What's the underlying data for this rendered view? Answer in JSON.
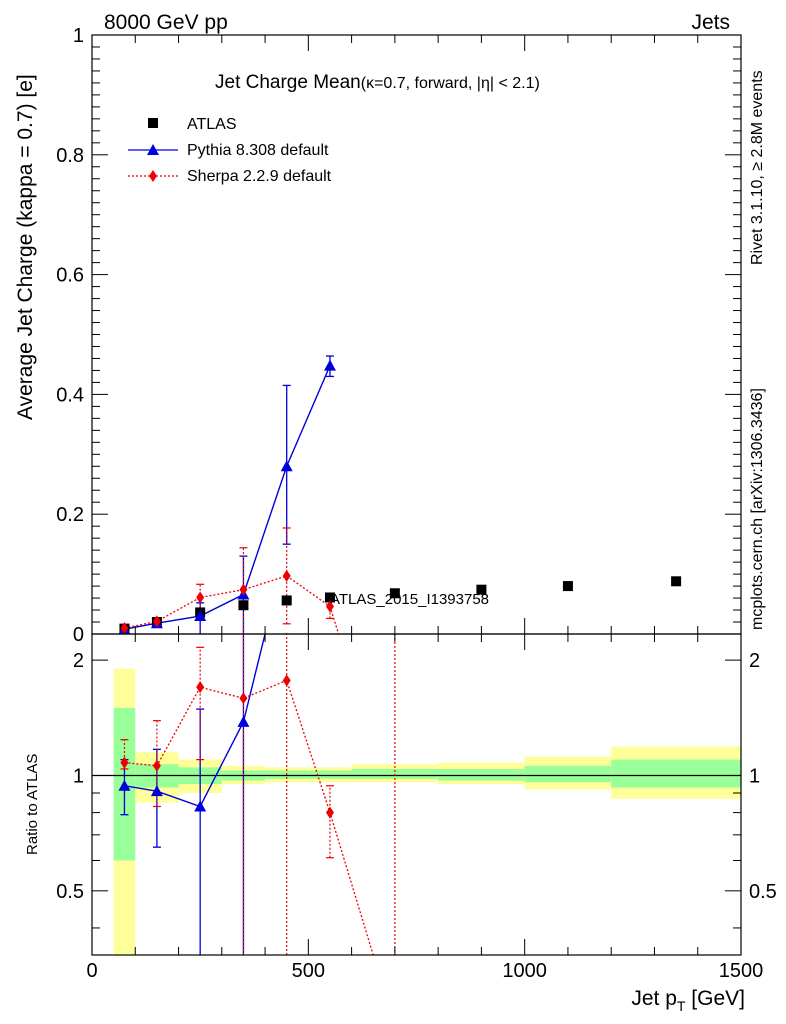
{
  "header": {
    "left": "8000 GeV pp",
    "right": "Jets"
  },
  "side_text": {
    "rivet": "Rivet 3.1.10, ≥ 2.8M events",
    "mcplots": "mcplots.cern.ch [arXiv:1306.3436]"
  },
  "watermark": "ATLAS_2015_I1393758",
  "colors": {
    "atlas": "#000000",
    "pythia": "#0000dd",
    "sherpa": "#ee0000",
    "band_inner": "#99ff99",
    "band_outer": "#ffff99"
  },
  "chart_data": [
    {
      "type": "scatter",
      "title_main": "Jet Charge Mean",
      "title_sub": "(κ=0.7, forward, |η| < 2.1)",
      "ylabel": "Average Jet Charge (kappa = 0.7) [e]",
      "xlim": [
        0,
        1500
      ],
      "ylim": [
        0,
        1
      ],
      "yticks": [
        0,
        0.2,
        0.4,
        0.6,
        0.8,
        1
      ],
      "ytick_labels": [
        "0",
        "0.2",
        "0.4",
        "0.6",
        "0.8",
        "1"
      ],
      "legend_position": "top-left",
      "series": [
        {
          "name": "ATLAS",
          "marker": "square",
          "x": [
            75,
            150,
            250,
            350,
            450,
            550,
            700,
            900,
            1100,
            1350
          ],
          "y": [
            0.009,
            0.02,
            0.036,
            0.048,
            0.056,
            0.061,
            0.068,
            0.074,
            0.08,
            0.088
          ],
          "xerr": [
            25,
            50,
            50,
            50,
            50,
            50,
            100,
            100,
            100,
            150
          ]
        },
        {
          "name": "Pythia 8.308 default",
          "marker": "triangle",
          "x": [
            75,
            150,
            250,
            350,
            450,
            550
          ],
          "y": [
            0.008,
            0.018,
            0.03,
            0.066,
            0.28,
            0.448
          ],
          "yerr_low": [
            0.003,
            0.005,
            0.03,
            0.066,
            0.13,
            0.018
          ],
          "yerr_high": [
            0.003,
            0.005,
            0.022,
            0.064,
            0.135,
            0.016
          ]
        },
        {
          "name": "Sherpa 2.2.9 default",
          "marker": "diamond",
          "x": [
            75,
            150,
            250,
            350,
            450,
            550
          ],
          "y": [
            0.01,
            0.021,
            0.061,
            0.074,
            0.097,
            0.046
          ],
          "yerr_low": [
            0.004,
            0.006,
            0.022,
            0.074,
            0.08,
            0.02
          ],
          "yerr_high": [
            0.004,
            0.006,
            0.022,
            0.07,
            0.08,
            0.02
          ],
          "tail_to": [
            700,
            -0.3
          ]
        }
      ]
    },
    {
      "type": "scatter",
      "ylabel": "Ratio to ATLAS",
      "xlabel": "Jet p_T [GeV]",
      "xlabel_main": "Jet p",
      "xlabel_sub": "T",
      "xlabel_unit": " [GeV]",
      "xlim": [
        0,
        1500
      ],
      "ylim": [
        0.34,
        2.34
      ],
      "xticks": [
        0,
        500,
        1000,
        1500
      ],
      "xtick_labels": [
        "0",
        "500",
        "1000",
        "1500"
      ],
      "yticks": [
        0.5,
        1,
        2
      ],
      "ytick_labels": [
        "0.5",
        "1",
        "2"
      ],
      "bands": [
        {
          "x0": 50,
          "x1": 100,
          "inner": [
            0.6,
            1.5
          ],
          "outer": [
            0.0,
            1.9
          ]
        },
        {
          "x0": 100,
          "x1": 200,
          "inner": [
            0.93,
            1.07
          ],
          "outer": [
            0.85,
            1.15
          ]
        },
        {
          "x0": 200,
          "x1": 300,
          "inner": [
            0.95,
            1.05
          ],
          "outer": [
            0.9,
            1.1
          ]
        },
        {
          "x0": 300,
          "x1": 400,
          "inner": [
            0.97,
            1.03
          ],
          "outer": [
            0.95,
            1.06
          ]
        },
        {
          "x0": 400,
          "x1": 500,
          "inner": [
            0.98,
            1.03
          ],
          "outer": [
            0.96,
            1.05
          ]
        },
        {
          "x0": 500,
          "x1": 600,
          "inner": [
            0.98,
            1.03
          ],
          "outer": [
            0.96,
            1.05
          ]
        },
        {
          "x0": 600,
          "x1": 800,
          "inner": [
            0.98,
            1.04
          ],
          "outer": [
            0.96,
            1.07
          ]
        },
        {
          "x0": 800,
          "x1": 1000,
          "inner": [
            0.97,
            1.04
          ],
          "outer": [
            0.95,
            1.08
          ]
        },
        {
          "x0": 1000,
          "x1": 1200,
          "inner": [
            0.96,
            1.06
          ],
          "outer": [
            0.92,
            1.12
          ]
        },
        {
          "x0": 1200,
          "x1": 1500,
          "inner": [
            0.93,
            1.1
          ],
          "outer": [
            0.87,
            1.19
          ]
        }
      ],
      "series": [
        {
          "name": "Pythia 8.308 default",
          "marker": "triangle",
          "x": [
            75,
            150,
            250,
            350
          ],
          "y": [
            0.94,
            0.91,
            0.83,
            1.38
          ],
          "yerr_low": [
            0.15,
            0.26,
            0.83,
            1.38
          ],
          "yerr_high": [
            0.16,
            0.26,
            0.66,
            1.0
          ],
          "tail_to": [
            400,
            2.34
          ]
        },
        {
          "name": "Sherpa 2.2.9 default",
          "marker": "diamond",
          "x": [
            75,
            150,
            250,
            350,
            450,
            550
          ],
          "y": [
            1.08,
            1.06,
            1.7,
            1.59,
            1.77,
            0.8
          ],
          "yerr_low": [
            0.04,
            0.23,
            0.6,
            1.59,
            1.77,
            0.19
          ],
          "yerr_high": [
            0.16,
            0.33,
            0.46,
            0.8,
            0.6,
            0.14
          ],
          "tail_to": [
            650,
            0.34
          ],
          "extra_error_x": 700
        }
      ]
    }
  ]
}
